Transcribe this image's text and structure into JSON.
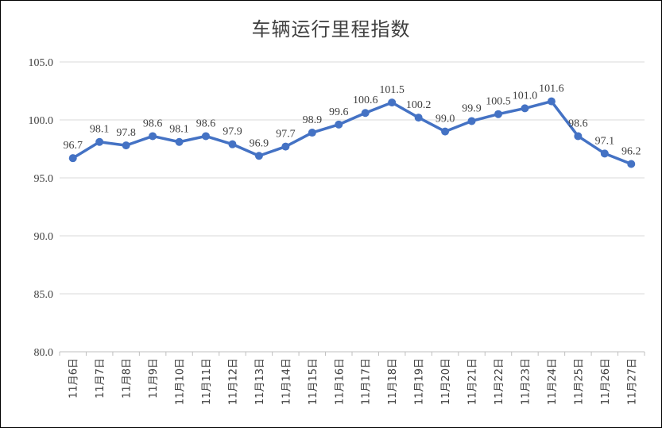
{
  "chart_data": {
    "type": "line",
    "title": "车辆运行里程指数",
    "xlabel": "",
    "ylabel": "",
    "ylim": [
      80.0,
      105.0
    ],
    "yticks": [
      "80.0",
      "85.0",
      "90.0",
      "95.0",
      "100.0",
      "105.0"
    ],
    "grid": true,
    "legend": "none",
    "categories": [
      "11月6日",
      "11月7日",
      "11月8日",
      "11月9日",
      "11月10日",
      "11月11日",
      "11月12日",
      "11月13日",
      "11月14日",
      "11月15日",
      "11月16日",
      "11月17日",
      "11月18日",
      "11月19日",
      "11月20日",
      "11月21日",
      "11月22日",
      "11月23日",
      "11月24日",
      "11月25日",
      "11月26日",
      "11月27日"
    ],
    "values": [
      96.7,
      98.1,
      97.8,
      98.6,
      98.1,
      98.6,
      97.9,
      96.9,
      97.7,
      98.9,
      99.6,
      100.6,
      101.5,
      100.2,
      99.0,
      99.9,
      100.5,
      101.0,
      101.6,
      98.6,
      97.1,
      96.2
    ],
    "data_labels": [
      "96.7",
      "98.1",
      "97.8",
      "98.6",
      "98.1",
      "98.6",
      "97.9",
      "96.9",
      "97.7",
      "98.9",
      "99.6",
      "100.6",
      "101.5",
      "100.2",
      "99.0",
      "99.9",
      "100.5",
      "101.0",
      "101.6",
      "98.6",
      "97.1",
      "96.2"
    ],
    "line_color": "#4472c4"
  }
}
